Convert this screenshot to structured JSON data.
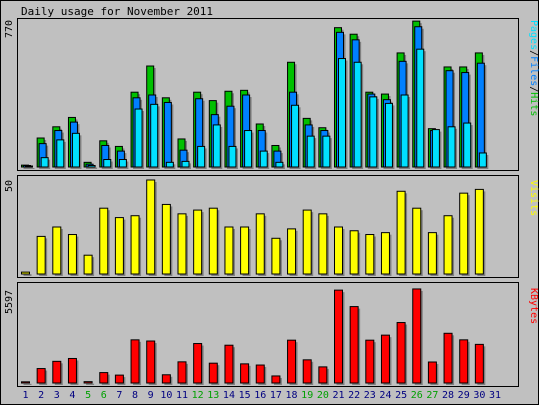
{
  "title": "Daily usage for November 2011",
  "colors": {
    "background": "#c0c0c0",
    "panel": "#c0c0c0",
    "hits": "#00c000",
    "files": "#0080ff",
    "pages": "#00e0ff",
    "visits": "#ffff00",
    "kbytes": "#ff0000",
    "weekend_day": "#00a000",
    "weekday": "#000080"
  },
  "chart_data": [
    {
      "type": "bar",
      "title": "Daily usage for November 2011",
      "ylabel_parts": [
        "Pages",
        "/",
        "Files",
        "/",
        "Hits"
      ],
      "ymax_label": "770",
      "ylim": [
        0,
        770
      ],
      "categories": [
        "1",
        "2",
        "3",
        "4",
        "5",
        "6",
        "7",
        "8",
        "9",
        "10",
        "11",
        "12",
        "13",
        "14",
        "15",
        "16",
        "17",
        "18",
        "19",
        "20",
        "21",
        "22",
        "23",
        "24",
        "25",
        "26",
        "27",
        "28",
        "29",
        "30",
        "31"
      ],
      "weekend": [
        5,
        6,
        12,
        13,
        19,
        20,
        26,
        27
      ],
      "series": [
        {
          "name": "Hits",
          "color": "hits",
          "values": [
            10,
            155,
            215,
            265,
            25,
            140,
            110,
            400,
            540,
            370,
            150,
            400,
            355,
            405,
            410,
            230,
            115,
            560,
            260,
            210,
            745,
            710,
            400,
            390,
            610,
            780,
            205,
            535,
            535,
            610,
            0
          ]
        },
        {
          "name": "Files",
          "color": "files",
          "values": [
            8,
            125,
            195,
            240,
            15,
            115,
            85,
            370,
            385,
            345,
            90,
            365,
            280,
            325,
            385,
            195,
            85,
            400,
            225,
            195,
            720,
            680,
            390,
            360,
            565,
            750,
            195,
            515,
            505,
            555,
            0
          ]
        },
        {
          "name": "Pages",
          "color": "pages",
          "values": [
            5,
            50,
            145,
            180,
            8,
            40,
            40,
            310,
            335,
            25,
            30,
            110,
            225,
            110,
            195,
            85,
            25,
            330,
            165,
            165,
            580,
            560,
            375,
            340,
            385,
            630,
            200,
            215,
            235,
            75,
            0
          ]
        }
      ]
    },
    {
      "type": "bar",
      "ylabel": "Visits",
      "ymax_label": "50",
      "ylim": [
        0,
        50
      ],
      "categories": [
        "1",
        "2",
        "3",
        "4",
        "5",
        "6",
        "7",
        "8",
        "9",
        "10",
        "11",
        "12",
        "13",
        "14",
        "15",
        "16",
        "17",
        "18",
        "19",
        "20",
        "21",
        "22",
        "23",
        "24",
        "25",
        "26",
        "27",
        "28",
        "29",
        "30",
        "31"
      ],
      "series": [
        {
          "name": "Visits",
          "color": "visits",
          "values": [
            1,
            20,
            25,
            21,
            10,
            35,
            30,
            31,
            50,
            37,
            32,
            34,
            35,
            25,
            25,
            32,
            19,
            24,
            34,
            32,
            25,
            23,
            21,
            22,
            44,
            35,
            22,
            31,
            43,
            45,
            0
          ]
        }
      ]
    },
    {
      "type": "bar",
      "ylabel": "KBytes",
      "ymax_label": "5597",
      "ylim": [
        0,
        5597
      ],
      "categories": [
        "1",
        "2",
        "3",
        "4",
        "5",
        "6",
        "7",
        "8",
        "9",
        "10",
        "11",
        "12",
        "13",
        "14",
        "15",
        "16",
        "17",
        "18",
        "19",
        "20",
        "21",
        "22",
        "23",
        "24",
        "25",
        "26",
        "27",
        "28",
        "29",
        "30",
        "31"
      ],
      "series": [
        {
          "name": "KBytes",
          "color": "kbytes",
          "values": [
            70,
            860,
            1290,
            1460,
            80,
            620,
            470,
            2570,
            2500,
            490,
            1260,
            2350,
            1180,
            2250,
            1140,
            1070,
            420,
            2550,
            1380,
            960,
            5530,
            4550,
            2550,
            2850,
            3600,
            5600,
            1250,
            2960,
            2570,
            2300,
            0
          ]
        }
      ]
    }
  ]
}
